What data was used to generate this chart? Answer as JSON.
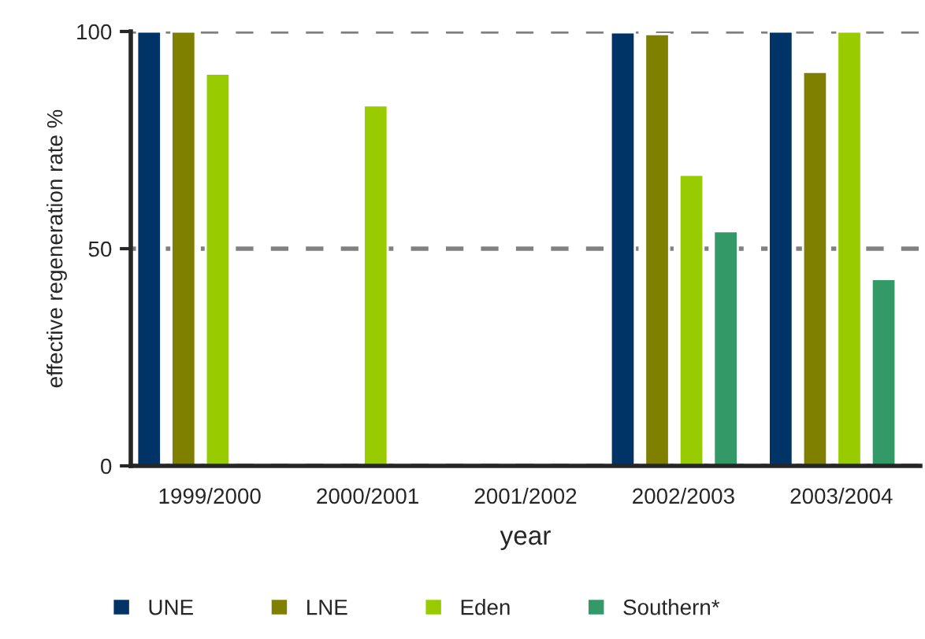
{
  "chart_data": {
    "type": "bar",
    "xlabel": "year",
    "ylabel": "effective regeneration rate %",
    "categories": [
      "1999/2000",
      "2000/2001",
      "2001/2002",
      "2002/2003",
      "2003/2004"
    ],
    "series": [
      {
        "name": "UNE",
        "color": "#003366",
        "values": [
          100,
          null,
          null,
          99.8,
          100
        ]
      },
      {
        "name": "LNE",
        "color": "#808000",
        "values": [
          100,
          null,
          null,
          99.4,
          90.7
        ]
      },
      {
        "name": "Eden",
        "color": "#99cc00",
        "values": [
          90.3,
          83,
          null,
          67,
          100
        ]
      },
      {
        "name": "Southern*",
        "color": "#339966",
        "values": [
          null,
          null,
          null,
          54,
          43
        ]
      }
    ],
    "ylim": [
      0,
      100
    ],
    "yticks": [
      0,
      50,
      100
    ],
    "grid": "y",
    "legend": "bottom"
  }
}
